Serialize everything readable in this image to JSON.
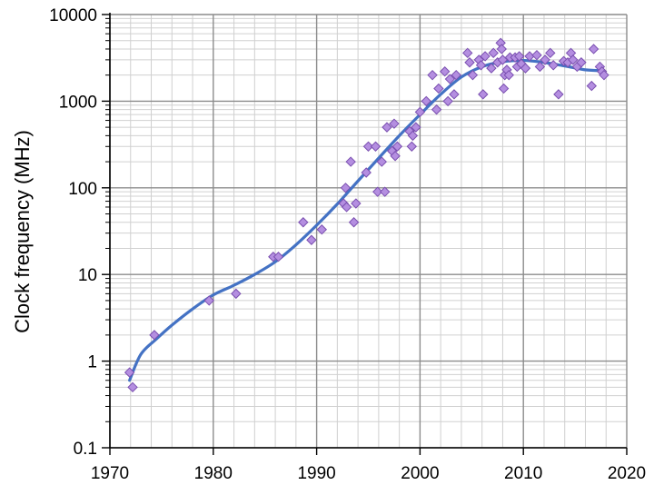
{
  "chart_data": {
    "type": "scatter",
    "title": "",
    "xlabel": "",
    "ylabel": "Clock frequency (MHz)",
    "xscale": "linear",
    "yscale": "log",
    "xlim": [
      1970,
      2020
    ],
    "ylim": [
      0.1,
      10000
    ],
    "x_ticks": [
      1970,
      1980,
      1990,
      2000,
      2010,
      2020
    ],
    "x_tick_labels": [
      "1970",
      "1980",
      "1990",
      "2000",
      "2010",
      "2020"
    ],
    "y_ticks": [
      0.1,
      1,
      10,
      100,
      1000,
      10000
    ],
    "y_tick_labels": [
      "0.1",
      "1",
      "10",
      "100",
      "1000",
      "10000"
    ],
    "grid": true,
    "legend": "none",
    "colors": {
      "marker_fill": "#b48ee0",
      "marker_stroke": "#7a4fb0",
      "trend_line": "#4472c4",
      "grid_major": "#8c8c8c",
      "grid_minor": "#d0d0d0",
      "axis": "#000000"
    },
    "series": [
      {
        "kind": "points",
        "points": [
          [
            1971.9,
            0.74
          ],
          [
            1972.2,
            0.5
          ],
          [
            1974.3,
            2.0
          ],
          [
            1979.6,
            5.0
          ],
          [
            1982.2,
            6.0
          ],
          [
            1985.8,
            16
          ],
          [
            1986.3,
            16
          ],
          [
            1988.7,
            40
          ],
          [
            1989.5,
            25
          ],
          [
            1990.5,
            33
          ],
          [
            1992.6,
            66
          ],
          [
            1992.8,
            100
          ],
          [
            1992.9,
            60
          ],
          [
            1993.3,
            200
          ],
          [
            1993.6,
            40
          ],
          [
            1993.8,
            66
          ],
          [
            1994.8,
            150
          ],
          [
            1995.0,
            300
          ],
          [
            1995.7,
            300
          ],
          [
            1995.9,
            90
          ],
          [
            1996.3,
            200
          ],
          [
            1996.6,
            90
          ],
          [
            1996.8,
            500
          ],
          [
            1997.3,
            266
          ],
          [
            1997.5,
            550
          ],
          [
            1997.6,
            233
          ],
          [
            1997.8,
            300
          ],
          [
            1999.0,
            450
          ],
          [
            1999.2,
            300
          ],
          [
            1999.3,
            400
          ],
          [
            1999.6,
            500
          ],
          [
            2000.0,
            750
          ],
          [
            2000.6,
            1000
          ],
          [
            2001.2,
            2000
          ],
          [
            2001.6,
            800
          ],
          [
            2001.8,
            1400
          ],
          [
            2002.4,
            2200
          ],
          [
            2002.7,
            1000
          ],
          [
            2002.9,
            1800
          ],
          [
            2003.5,
            2000
          ],
          [
            2003.3,
            1200
          ],
          [
            2004.6,
            3600
          ],
          [
            2004.8,
            2800
          ],
          [
            2005.1,
            2000
          ],
          [
            2005.7,
            3000
          ],
          [
            2005.9,
            2600
          ],
          [
            2006.3,
            3300
          ],
          [
            2006.1,
            1200
          ],
          [
            2006.9,
            2400
          ],
          [
            2007.1,
            3600
          ],
          [
            2007.5,
            2800
          ],
          [
            2007.8,
            4700
          ],
          [
            2007.9,
            4000
          ],
          [
            2008.0,
            3000
          ],
          [
            2008.1,
            1400
          ],
          [
            2008.2,
            2000
          ],
          [
            2008.4,
            2300
          ],
          [
            2008.6,
            2000
          ],
          [
            2008.7,
            3200
          ],
          [
            2009.2,
            3200
          ],
          [
            2009.4,
            2500
          ],
          [
            2009.6,
            3300
          ],
          [
            2009.8,
            2700
          ],
          [
            2010.2,
            2400
          ],
          [
            2010.6,
            3300
          ],
          [
            2011.3,
            3400
          ],
          [
            2011.6,
            2500
          ],
          [
            2012.1,
            3000
          ],
          [
            2012.6,
            3600
          ],
          [
            2012.9,
            2600
          ],
          [
            2013.4,
            1200
          ],
          [
            2013.9,
            2900
          ],
          [
            2014.3,
            2800
          ],
          [
            2014.6,
            3600
          ],
          [
            2014.8,
            3000
          ],
          [
            2015.2,
            2500
          ],
          [
            2015.6,
            2800
          ],
          [
            2016.6,
            1500
          ],
          [
            2016.8,
            4000
          ],
          [
            2017.4,
            2500
          ],
          [
            2017.6,
            2200
          ],
          [
            2017.8,
            2000
          ]
        ]
      },
      {
        "kind": "trend",
        "points": [
          [
            1971.9,
            0.6
          ],
          [
            1973.0,
            1.2
          ],
          [
            1974.5,
            1.8
          ],
          [
            1976.0,
            2.6
          ],
          [
            1978.0,
            4.0
          ],
          [
            1980.0,
            5.8
          ],
          [
            1982.0,
            7.5
          ],
          [
            1984.0,
            10
          ],
          [
            1986.0,
            14
          ],
          [
            1988.0,
            22
          ],
          [
            1990.0,
            37
          ],
          [
            1992.0,
            65
          ],
          [
            1994.0,
            120
          ],
          [
            1996.0,
            220
          ],
          [
            1998.0,
            400
          ],
          [
            2000.0,
            700
          ],
          [
            2002.0,
            1200
          ],
          [
            2004.0,
            1900
          ],
          [
            2006.0,
            2500
          ],
          [
            2008.0,
            2850
          ],
          [
            2010.0,
            2950
          ],
          [
            2012.0,
            2800
          ],
          [
            2014.0,
            2550
          ],
          [
            2016.0,
            2300
          ],
          [
            2017.8,
            2250
          ]
        ]
      }
    ]
  }
}
